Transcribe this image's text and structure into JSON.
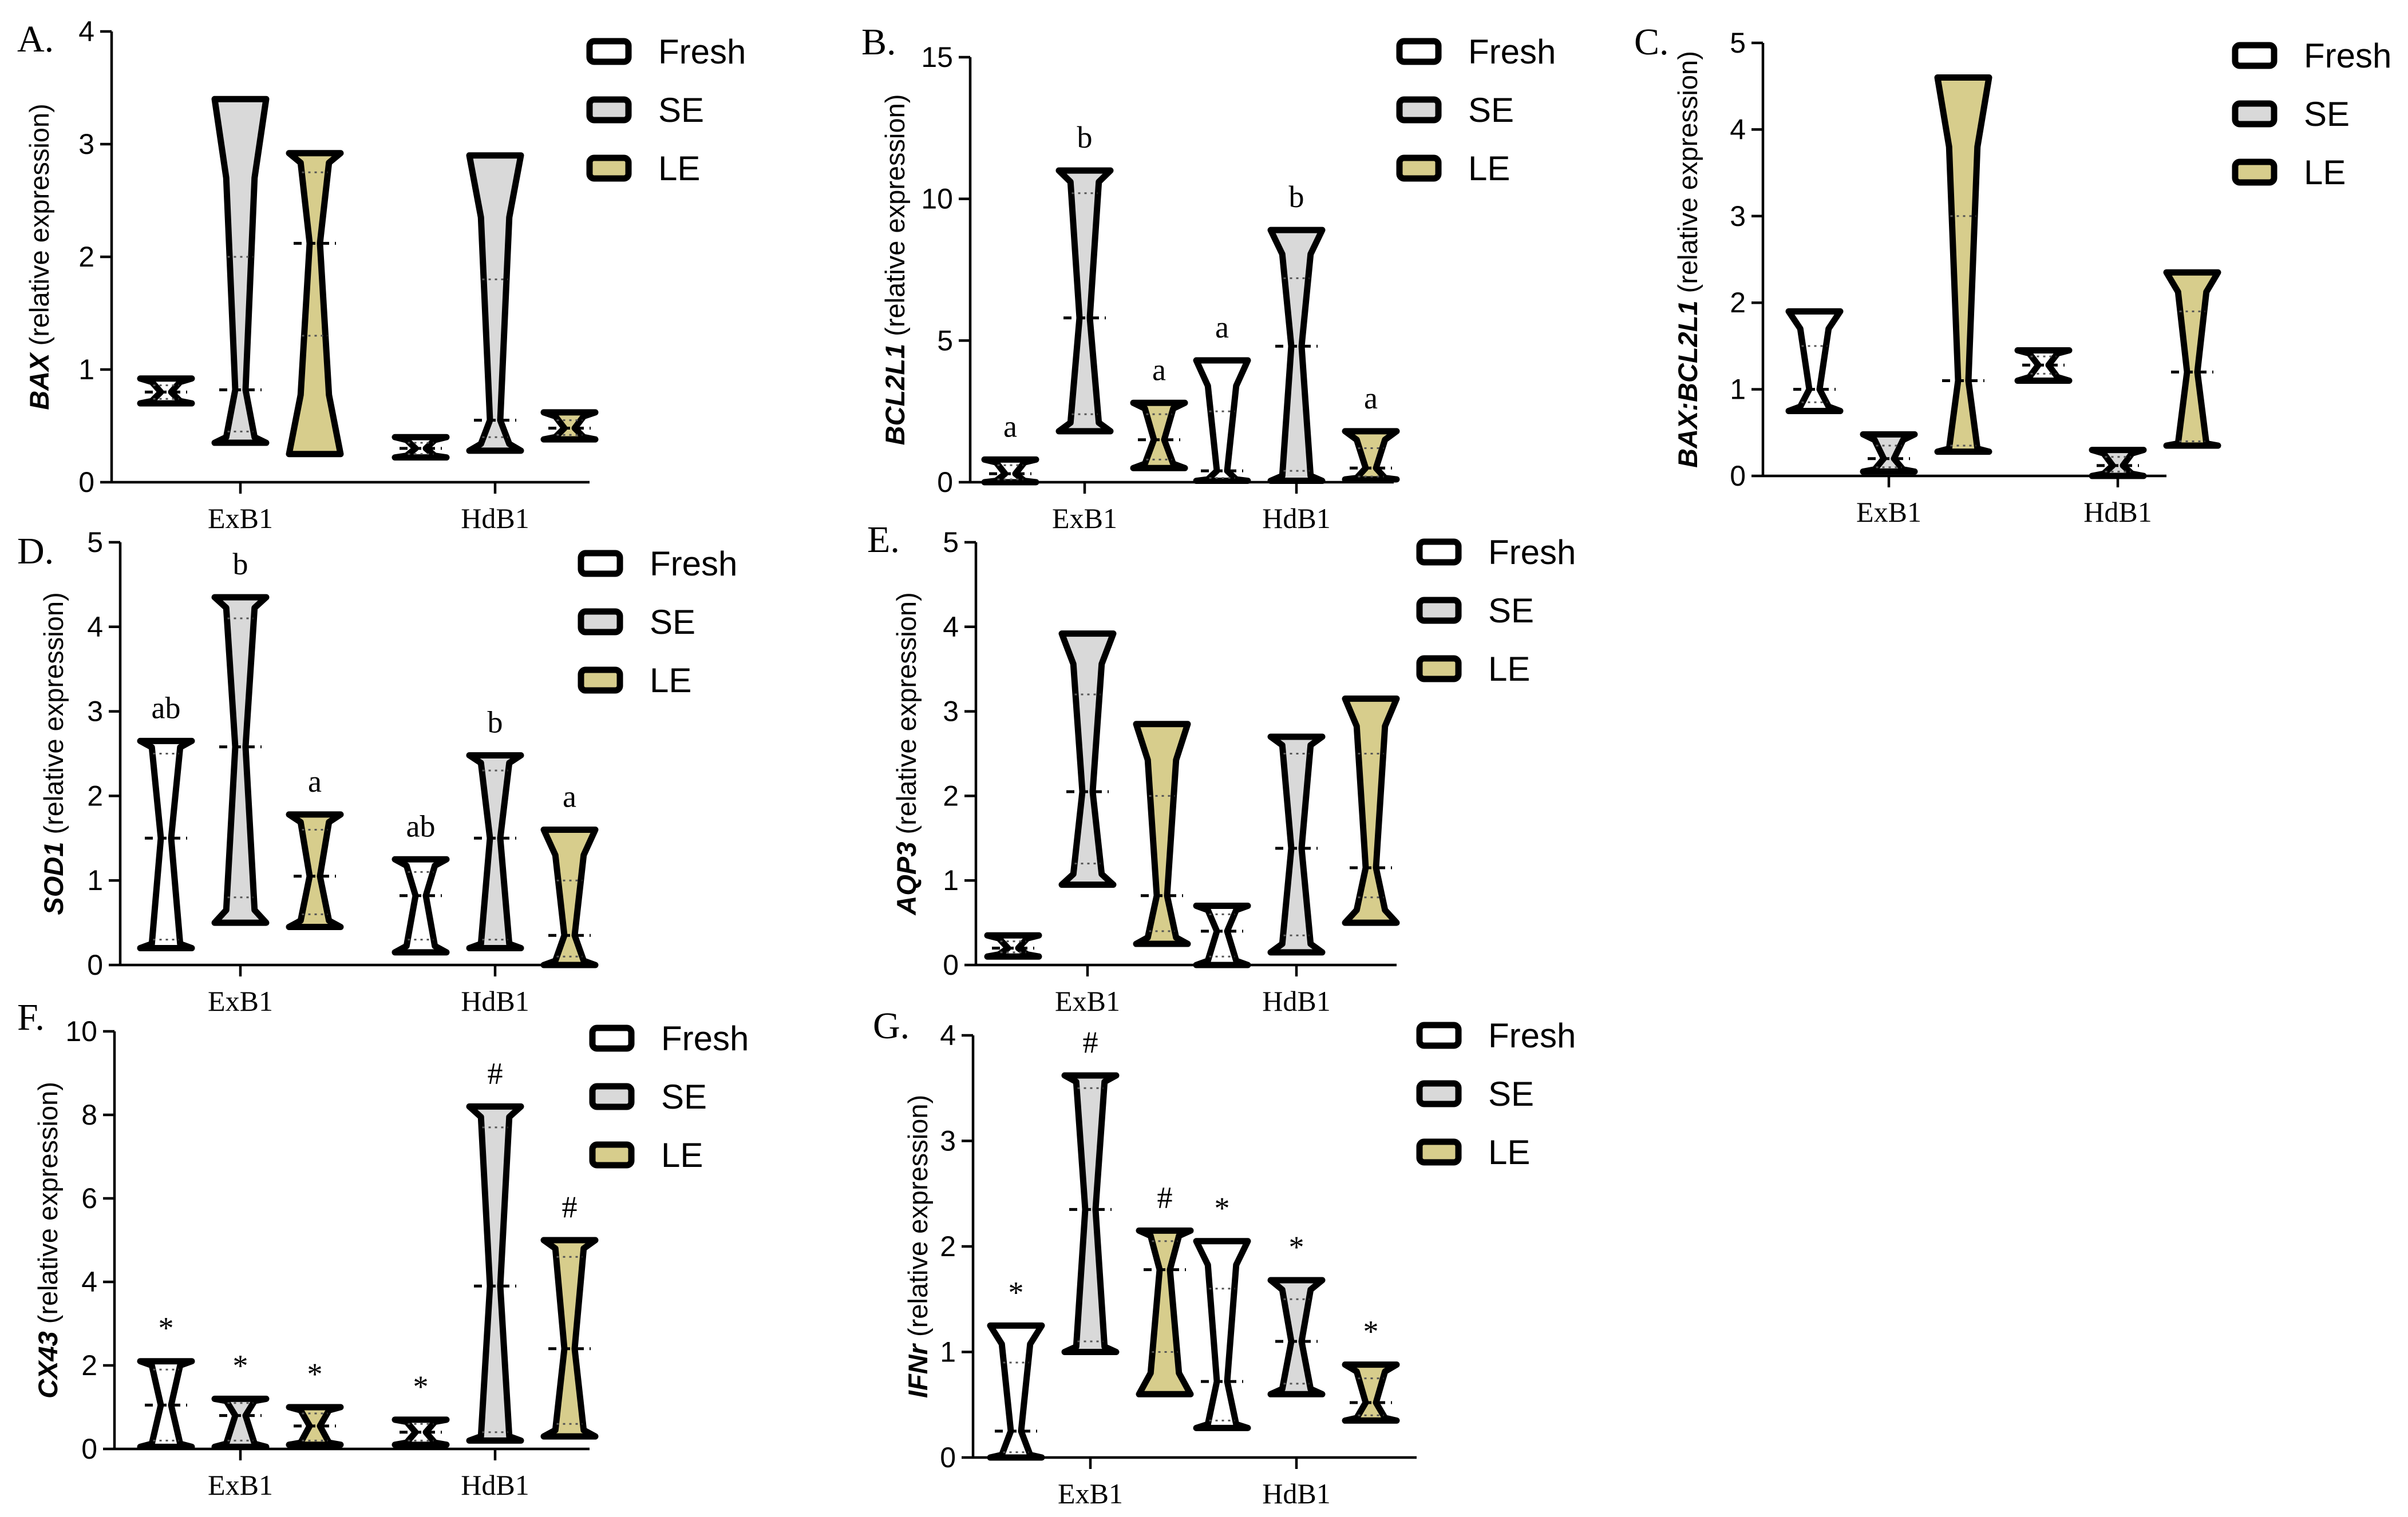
{
  "groups": [
    "Fresh",
    "SE",
    "LE"
  ],
  "colors": {
    "Fresh": "#ffffff",
    "SE": "#d9d9d9",
    "LE": "#d7cd8c"
  },
  "chart_data": [
    {
      "panel": "A.",
      "type": "violin",
      "ylabel_gene": "BAX",
      "ylabel_rest": " (relative expression)",
      "ylim": [
        0,
        4
      ],
      "yticks": [
        "0",
        "1",
        "2",
        "3",
        "4"
      ],
      "categories": [
        "ExB1",
        "HdB1"
      ],
      "series": [
        {
          "name": "Fresh",
          "data": [
            {
              "min": 0.7,
              "max": 0.92,
              "median": 0.8,
              "q1": 0.74,
              "q3": 0.86
            },
            {
              "min": 0.22,
              "max": 0.4,
              "median": 0.3,
              "q1": 0.25,
              "q3": 0.35
            }
          ]
        },
        {
          "name": "SE",
          "data": [
            {
              "min": 0.35,
              "max": 3.4,
              "median": 0.82,
              "q1": 0.45,
              "q3": 2.0
            },
            {
              "min": 0.28,
              "max": 2.9,
              "median": 0.55,
              "q1": 0.4,
              "q3": 1.8
            }
          ]
        },
        {
          "name": "LE",
          "data": [
            {
              "min": 0.25,
              "max": 2.92,
              "median": 2.12,
              "q1": 1.3,
              "q3": 2.75
            },
            {
              "min": 0.38,
              "max": 0.62,
              "median": 0.48,
              "q1": 0.42,
              "q3": 0.55
            }
          ]
        }
      ],
      "annotations": []
    },
    {
      "panel": "B.",
      "type": "violin",
      "ylabel_gene": "BCL2L1",
      "ylabel_rest": " (relative expression)",
      "ylim": [
        0,
        15
      ],
      "yticks": [
        "0",
        "5",
        "10",
        "15"
      ],
      "categories": [
        "ExB1",
        "HdB1"
      ],
      "series": [
        {
          "name": "Fresh",
          "data": [
            {
              "min": 0.0,
              "max": 0.8,
              "median": 0.3,
              "q1": 0.1,
              "q3": 0.6
            },
            {
              "min": 0.05,
              "max": 4.3,
              "median": 0.4,
              "q1": 0.15,
              "q3": 2.5
            }
          ]
        },
        {
          "name": "SE",
          "data": [
            {
              "min": 1.8,
              "max": 11.0,
              "median": 5.8,
              "q1": 2.4,
              "q3": 10.2
            },
            {
              "min": 0.05,
              "max": 8.9,
              "median": 4.8,
              "q1": 0.4,
              "q3": 7.2
            }
          ]
        },
        {
          "name": "LE",
          "data": [
            {
              "min": 0.5,
              "max": 2.8,
              "median": 1.5,
              "q1": 0.8,
              "q3": 2.4
            },
            {
              "min": 0.1,
              "max": 1.8,
              "median": 0.5,
              "q1": 0.2,
              "q3": 1.2
            }
          ]
        }
      ],
      "annotations": [
        {
          "cat": 0,
          "grp": 0,
          "text": "a"
        },
        {
          "cat": 0,
          "grp": 1,
          "text": "b"
        },
        {
          "cat": 0,
          "grp": 2,
          "text": "a"
        },
        {
          "cat": 1,
          "grp": 0,
          "text": "a"
        },
        {
          "cat": 1,
          "grp": 1,
          "text": "b"
        },
        {
          "cat": 1,
          "grp": 2,
          "text": "a"
        }
      ]
    },
    {
      "panel": "C.",
      "type": "violin",
      "ylabel_gene": "BAX:BCL2L1",
      "ylabel_rest": " (relative expression)",
      "ylim": [
        0,
        5
      ],
      "yticks": [
        "0",
        "1",
        "2",
        "3",
        "4",
        "5"
      ],
      "categories": [
        "ExB1",
        "HdB1"
      ],
      "series": [
        {
          "name": "Fresh",
          "data": [
            {
              "min": 0.75,
              "max": 1.9,
              "median": 1.0,
              "q1": 0.85,
              "q3": 1.5
            },
            {
              "min": 1.1,
              "max": 1.45,
              "median": 1.28,
              "q1": 1.18,
              "q3": 1.38
            }
          ]
        },
        {
          "name": "SE",
          "data": [
            {
              "min": 0.05,
              "max": 0.48,
              "median": 0.2,
              "q1": 0.1,
              "q3": 0.35
            },
            {
              "min": 0.0,
              "max": 0.3,
              "median": 0.12,
              "q1": 0.05,
              "q3": 0.22
            }
          ]
        },
        {
          "name": "LE",
          "data": [
            {
              "min": 0.28,
              "max": 4.6,
              "median": 1.1,
              "q1": 0.35,
              "q3": 3.0
            },
            {
              "min": 0.35,
              "max": 2.35,
              "median": 1.2,
              "q1": 0.4,
              "q3": 1.9
            }
          ]
        }
      ],
      "annotations": []
    },
    {
      "panel": "D.",
      "type": "violin",
      "ylabel_gene": "SOD1",
      "ylabel_rest": " (relative expression)",
      "ylim": [
        0,
        5
      ],
      "yticks": [
        "0",
        "1",
        "2",
        "3",
        "4",
        "5"
      ],
      "categories": [
        "ExB1",
        "HdB1"
      ],
      "series": [
        {
          "name": "Fresh",
          "data": [
            {
              "min": 0.2,
              "max": 2.65,
              "median": 1.5,
              "q1": 0.3,
              "q3": 2.5
            },
            {
              "min": 0.15,
              "max": 1.25,
              "median": 0.82,
              "q1": 0.3,
              "q3": 1.1
            }
          ]
        },
        {
          "name": "SE",
          "data": [
            {
              "min": 0.5,
              "max": 4.35,
              "median": 2.58,
              "q1": 0.8,
              "q3": 4.1
            },
            {
              "min": 0.2,
              "max": 2.48,
              "median": 1.5,
              "q1": 0.3,
              "q3": 2.3
            }
          ]
        },
        {
          "name": "LE",
          "data": [
            {
              "min": 0.45,
              "max": 1.78,
              "median": 1.05,
              "q1": 0.6,
              "q3": 1.6
            },
            {
              "min": 0.0,
              "max": 1.6,
              "median": 0.35,
              "q1": 0.1,
              "q3": 1.0
            }
          ]
        }
      ],
      "annotations": [
        {
          "cat": 0,
          "grp": 0,
          "text": "ab"
        },
        {
          "cat": 0,
          "grp": 1,
          "text": "b"
        },
        {
          "cat": 0,
          "grp": 2,
          "text": "a"
        },
        {
          "cat": 1,
          "grp": 0,
          "text": "ab"
        },
        {
          "cat": 1,
          "grp": 1,
          "text": "b"
        },
        {
          "cat": 1,
          "grp": 2,
          "text": "a"
        }
      ]
    },
    {
      "panel": "E.",
      "type": "violin",
      "ylabel_gene": "AQP3",
      "ylabel_rest": " (relative expression)",
      "ylim": [
        0,
        5
      ],
      "yticks": [
        "0",
        "1",
        "2",
        "3",
        "4",
        "5"
      ],
      "categories": [
        "ExB1",
        "HdB1"
      ],
      "series": [
        {
          "name": "Fresh",
          "data": [
            {
              "min": 0.1,
              "max": 0.35,
              "median": 0.2,
              "q1": 0.15,
              "q3": 0.28
            },
            {
              "min": 0.0,
              "max": 0.7,
              "median": 0.4,
              "q1": 0.1,
              "q3": 0.6
            }
          ]
        },
        {
          "name": "SE",
          "data": [
            {
              "min": 0.95,
              "max": 3.92,
              "median": 2.05,
              "q1": 1.2,
              "q3": 3.2
            },
            {
              "min": 0.15,
              "max": 2.7,
              "median": 1.38,
              "q1": 0.35,
              "q3": 2.5
            }
          ]
        },
        {
          "name": "LE",
          "data": [
            {
              "min": 0.25,
              "max": 2.85,
              "median": 0.82,
              "q1": 0.4,
              "q3": 2.0
            },
            {
              "min": 0.5,
              "max": 3.15,
              "median": 1.15,
              "q1": 0.8,
              "q3": 2.5
            }
          ]
        }
      ],
      "annotations": []
    },
    {
      "panel": "F.",
      "type": "violin",
      "ylabel_gene": "CX43",
      "ylabel_rest": " (relative expression)",
      "ylim": [
        0,
        10
      ],
      "yticks": [
        "0",
        "2",
        "4",
        "6",
        "8",
        "10"
      ],
      "categories": [
        "ExB1",
        "HdB1"
      ],
      "series": [
        {
          "name": "Fresh",
          "data": [
            {
              "min": 0.05,
              "max": 2.1,
              "median": 1.05,
              "q1": 0.2,
              "q3": 1.9
            },
            {
              "min": 0.1,
              "max": 0.7,
              "median": 0.4,
              "q1": 0.2,
              "q3": 0.6
            }
          ]
        },
        {
          "name": "SE",
          "data": [
            {
              "min": 0.05,
              "max": 1.2,
              "median": 0.8,
              "q1": 0.2,
              "q3": 1.1
            },
            {
              "min": 0.2,
              "max": 8.2,
              "median": 3.9,
              "q1": 0.4,
              "q3": 7.7
            }
          ]
        },
        {
          "name": "LE",
          "data": [
            {
              "min": 0.1,
              "max": 1.0,
              "median": 0.55,
              "q1": 0.2,
              "q3": 0.85
            },
            {
              "min": 0.3,
              "max": 5.0,
              "median": 2.4,
              "q1": 0.6,
              "q3": 4.6
            }
          ]
        }
      ],
      "annotations": [
        {
          "cat": 0,
          "grp": 0,
          "text": "*"
        },
        {
          "cat": 0,
          "grp": 1,
          "text": "*"
        },
        {
          "cat": 0,
          "grp": 2,
          "text": "*"
        },
        {
          "cat": 1,
          "grp": 0,
          "text": "*"
        },
        {
          "cat": 1,
          "grp": 1,
          "text": "#"
        },
        {
          "cat": 1,
          "grp": 2,
          "text": "#"
        }
      ]
    },
    {
      "panel": "G.",
      "type": "violin",
      "ylabel_gene": "IFNr",
      "ylabel_rest": " (relative expression)",
      "ylim": [
        0,
        4
      ],
      "yticks": [
        "0",
        "1",
        "2",
        "3",
        "4"
      ],
      "categories": [
        "ExB1",
        "HdB1"
      ],
      "series": [
        {
          "name": "Fresh",
          "data": [
            {
              "min": 0.0,
              "max": 1.25,
              "median": 0.25,
              "q1": 0.05,
              "q3": 0.9
            },
            {
              "min": 0.28,
              "max": 2.05,
              "median": 0.72,
              "q1": 0.35,
              "q3": 1.6
            }
          ]
        },
        {
          "name": "SE",
          "data": [
            {
              "min": 1.0,
              "max": 3.62,
              "median": 2.35,
              "q1": 1.1,
              "q3": 3.5
            },
            {
              "min": 0.6,
              "max": 1.68,
              "median": 1.1,
              "q1": 0.7,
              "q3": 1.5
            }
          ]
        },
        {
          "name": "LE",
          "data": [
            {
              "min": 0.6,
              "max": 2.15,
              "median": 1.78,
              "q1": 1.0,
              "q3": 2.05
            },
            {
              "min": 0.35,
              "max": 0.88,
              "median": 0.52,
              "q1": 0.4,
              "q3": 0.75
            }
          ]
        }
      ],
      "annotations": [
        {
          "cat": 0,
          "grp": 0,
          "text": "*"
        },
        {
          "cat": 0,
          "grp": 1,
          "text": "#"
        },
        {
          "cat": 0,
          "grp": 2,
          "text": "#"
        },
        {
          "cat": 1,
          "grp": 0,
          "text": "*"
        },
        {
          "cat": 1,
          "grp": 1,
          "text": "*"
        },
        {
          "cat": 1,
          "grp": 2,
          "text": "*"
        }
      ]
    }
  ]
}
